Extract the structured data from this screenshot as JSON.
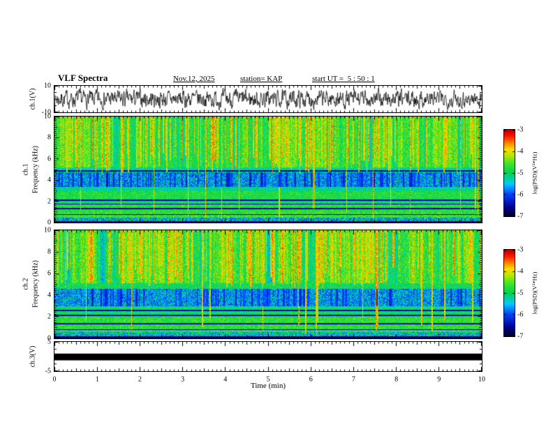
{
  "header": {
    "title": "VLF Spectra",
    "date": "Nov.12, 2025",
    "station": "station= KAP",
    "start_ut": "start UT =  5 : 50 : 1"
  },
  "x_axis": {
    "label": "Time (min)",
    "ticks": [
      0,
      1,
      2,
      3,
      4,
      5,
      6,
      7,
      8,
      9,
      10
    ],
    "range": [
      0,
      10
    ]
  },
  "colorbar": {
    "label": "log(PSD)(V²*Hz)",
    "ticks": [
      -3,
      -4,
      -5,
      -6,
      -7
    ],
    "range": [
      -7,
      -3
    ]
  },
  "panels": {
    "wave1": {
      "ylabel": "ch.1(V)",
      "ticks": [
        10,
        -10
      ],
      "range": [
        -10,
        10
      ]
    },
    "spec1": {
      "ylabel": "ch.1\nFrequency (kHz)",
      "ticks": [
        10,
        8,
        6,
        4,
        2,
        0
      ],
      "range": [
        0,
        10
      ]
    },
    "spec2": {
      "ylabel": "ch.2\nFrequency (kHz)",
      "ticks": [
        10,
        8,
        6,
        4,
        2,
        0
      ],
      "range": [
        0,
        10
      ]
    },
    "wave3": {
      "ylabel": "ch.3(V)",
      "ticks": [
        5,
        -5
      ],
      "range": [
        -5,
        5
      ]
    }
  },
  "style": {
    "background": "#ffffff",
    "trace_color": "#000000",
    "colormap_stops": [
      [
        0.0,
        "#000028"
      ],
      [
        0.1,
        "#00008c"
      ],
      [
        0.25,
        "#0040ff"
      ],
      [
        0.375,
        "#00ccff"
      ],
      [
        0.5,
        "#00d24e"
      ],
      [
        0.62,
        "#46e628"
      ],
      [
        0.7,
        "#b4e600"
      ],
      [
        0.78,
        "#ffdc00"
      ],
      [
        0.86,
        "#ff7800"
      ],
      [
        0.93,
        "#ff1400"
      ],
      [
        1.0,
        "#b40000"
      ]
    ]
  },
  "chart_data": [
    {
      "type": "line",
      "panel": "wave1",
      "name": "ch.1 voltage waveform",
      "x_range": [
        0,
        10
      ],
      "y_range": [
        -10,
        10
      ],
      "description": "continuous band-limited noise trace, excursions to about ±8 V",
      "seed": 7,
      "amplitude": 5.2,
      "smooth": 0.5
    },
    {
      "type": "heatmap",
      "panel": "spec1",
      "name": "ch.1 VLF spectrogram",
      "x_range": [
        0,
        10
      ],
      "y_range": [
        0,
        10
      ],
      "value_range": [
        -7,
        -3
      ],
      "seed": 101,
      "bands": [
        {
          "f0": 0.0,
          "f1": 0.15,
          "level": 0.07,
          "noise": 0.05
        },
        {
          "f0": 0.15,
          "f1": 0.45,
          "level": 0.4,
          "noise": 0.22
        },
        {
          "f0": 0.45,
          "f1": 1.0,
          "level": 0.57,
          "noise": 0.14
        },
        {
          "f0": 1.0,
          "f1": 1.9,
          "level": 0.56,
          "noise": 0.1
        },
        {
          "f0": 1.9,
          "f1": 2.25,
          "level": 0.44,
          "noise": 0.12
        },
        {
          "f0": 2.25,
          "f1": 2.95,
          "level": 0.55,
          "noise": 0.1
        },
        {
          "f0": 2.95,
          "f1": 3.35,
          "level": 0.46,
          "noise": 0.1
        },
        {
          "f0": 3.35,
          "f1": 4.75,
          "level": 0.34,
          "noise": 0.16
        },
        {
          "f0": 4.75,
          "f1": 5.2,
          "level": 0.46,
          "noise": 0.1
        },
        {
          "f0": 5.2,
          "f1": 10.01,
          "level": 0.57,
          "noise": 0.11
        }
      ],
      "dark_lines": [
        0.75,
        1.3,
        1.75,
        2.1,
        4.85
      ],
      "red_streaks": {
        "count": 150,
        "level": 0.93,
        "fstop_min": 4.6,
        "fstop_max": 6.5,
        "full_fraction": 0.12
      },
      "dark_streaks": {
        "count": 95,
        "level": 0.12,
        "fmin": 3.35,
        "fmax": 4.75
      },
      "upper_mottle": {
        "fmin": 5.2,
        "amp": 0.12
      },
      "description": "green background above 5 kHz with dense vertical red/orange sferic streaks; blue-cyan absorption band 3.3-4.8 kHz with dark blue vertical patches; green/cyan mottle below 3 kHz with thin dark horizontal lines; black band at 0 kHz"
    },
    {
      "type": "heatmap",
      "panel": "spec2",
      "name": "ch.2 VLF spectrogram",
      "x_range": [
        0,
        10
      ],
      "y_range": [
        0,
        10
      ],
      "value_range": [
        -7,
        -3
      ],
      "seed": 202,
      "bands": [
        {
          "f0": 0.0,
          "f1": 0.2,
          "level": 0.08,
          "noise": 0.05
        },
        {
          "f0": 0.2,
          "f1": 0.55,
          "level": 0.42,
          "noise": 0.2
        },
        {
          "f0": 0.55,
          "f1": 1.0,
          "level": 0.56,
          "noise": 0.12
        },
        {
          "f0": 1.0,
          "f1": 2.0,
          "level": 0.57,
          "noise": 0.1
        },
        {
          "f0": 2.0,
          "f1": 3.0,
          "level": 0.5,
          "noise": 0.12
        },
        {
          "f0": 3.0,
          "f1": 4.55,
          "level": 0.35,
          "noise": 0.16
        },
        {
          "f0": 4.55,
          "f1": 5.1,
          "level": 0.52,
          "noise": 0.1
        },
        {
          "f0": 5.1,
          "f1": 10.01,
          "level": 0.61,
          "noise": 0.12
        }
      ],
      "dark_lines": [
        0.8,
        1.35,
        2.15,
        2.6
      ],
      "red_streaks": {
        "count": 130,
        "level": 0.93,
        "fstop_min": 4.6,
        "fstop_max": 6.8,
        "full_fraction": 0.15
      },
      "dark_streaks": {
        "count": 85,
        "level": 0.13,
        "fmin": 3.0,
        "fmax": 4.55
      },
      "upper_mottle": {
        "fmin": 5.1,
        "amp": 0.14
      },
      "description": "yellow-green background above 5 kHz with dense vertical red sferic streaks; cyan-blue absorption band 3-4.5 kHz with dark blue patches; green below with thin dark horizontal lines; black band at 0 kHz"
    },
    {
      "type": "line",
      "panel": "wave3",
      "name": "ch.3 voltage waveform",
      "x_range": [
        0,
        10
      ],
      "y_range": [
        -5,
        5
      ],
      "description": "flat saturated trace rendered as a thick solid black bar near 0 V",
      "bar": [
        1.0,
        -1.3
      ]
    }
  ]
}
